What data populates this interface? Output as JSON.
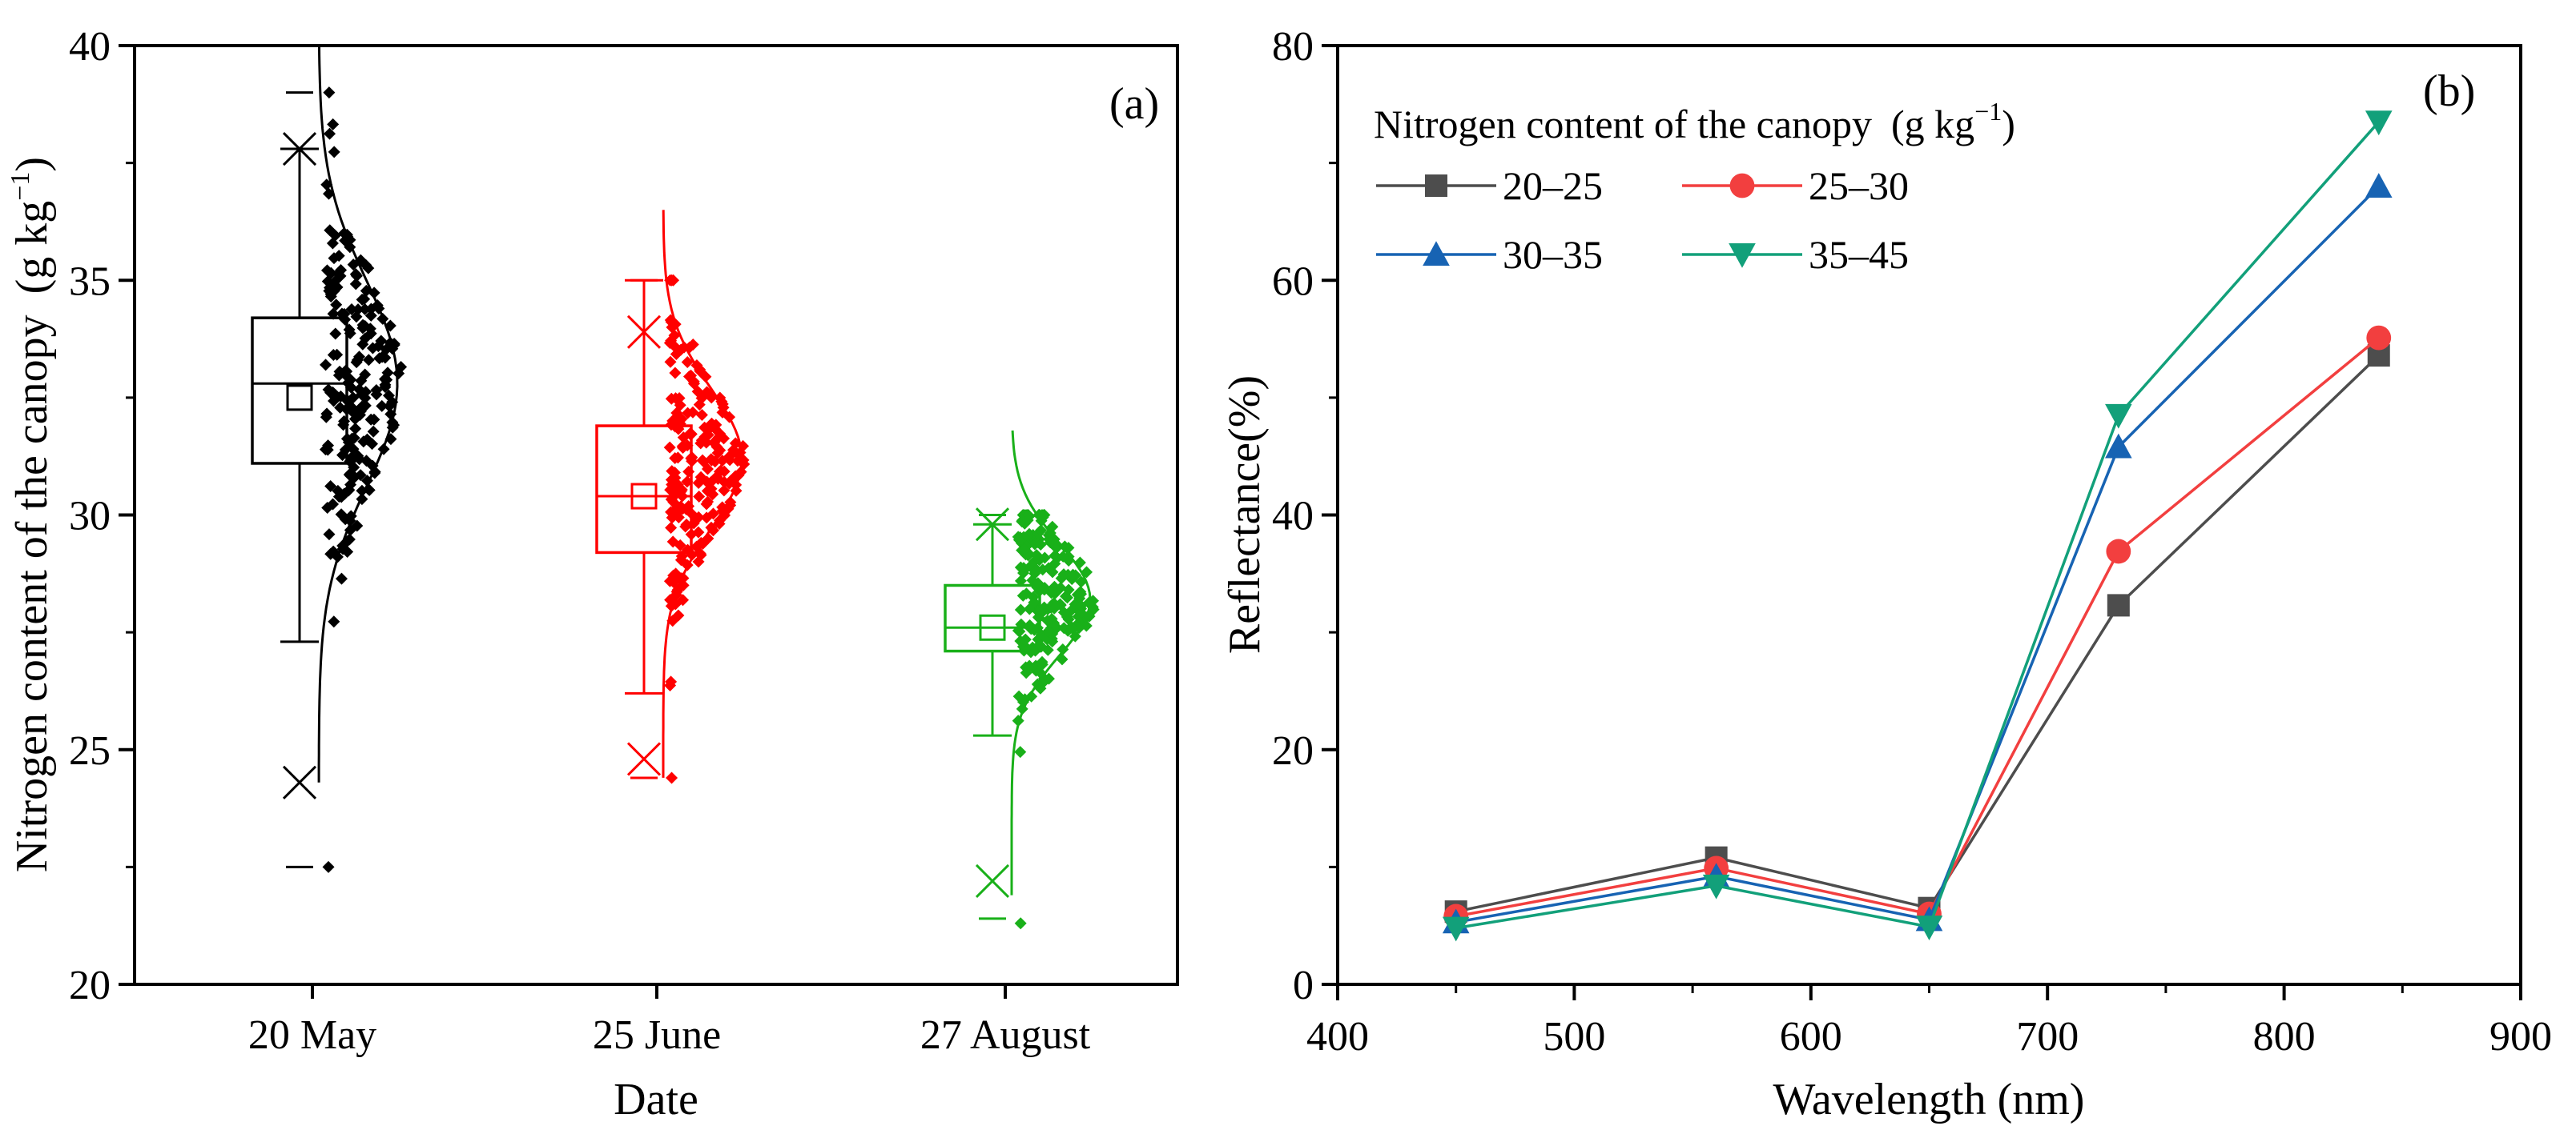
{
  "figure": {
    "panels": [
      "(a)",
      "(b)"
    ]
  },
  "chart_data": [
    {
      "type": "box",
      "panel_label": "(a)",
      "xlabel": "Date",
      "ylabel": "Nitrogen content of the canopy",
      "ylabel_unit": "(g kg",
      "ylabel_unit_exp": "−1",
      "ylabel_unit_close": ")",
      "ylim": [
        20,
        40
      ],
      "yticks": [
        20,
        25,
        30,
        35,
        40
      ],
      "categories": [
        "20 May",
        "25 June",
        "27 August"
      ],
      "colors": [
        "#000000",
        "#ff0000",
        "#19b019"
      ],
      "series": [
        {
          "name": "20 May",
          "whisker_low": 27.3,
          "q1": 31.1,
          "median": 32.8,
          "q3": 34.2,
          "whisker_high": 37.8,
          "mean": 32.5,
          "outlier_marks_x": [
            37.8,
            24.3
          ],
          "range_dashes": [
            39.0,
            22.5
          ],
          "scatter_min": 22.5,
          "scatter_max": 39.0,
          "normal_curve": {
            "mean": 32.8,
            "sd": 2.2,
            "range": [
              24.3,
              40.0
            ]
          }
        },
        {
          "name": "25 June",
          "whisker_low": 26.2,
          "q1": 29.2,
          "median": 30.4,
          "q3": 31.9,
          "whisker_high": 35.0,
          "mean": 30.4,
          "outlier_marks_x": [
            33.9,
            24.8
          ],
          "range_dashes": [
            35.0,
            24.4
          ],
          "scatter_min": 24.4,
          "scatter_max": 35.0,
          "normal_curve": {
            "mean": 31.2,
            "sd": 1.5,
            "range": [
              24.4,
              36.5
            ]
          }
        },
        {
          "name": "27 August",
          "whisker_low": 25.3,
          "q1": 27.1,
          "median": 27.6,
          "q3": 28.5,
          "whisker_high": 29.8,
          "mean": 27.6,
          "outlier_marks_x": [
            29.8,
            22.2
          ],
          "range_dashes": [
            30.0,
            21.4
          ],
          "scatter_min": 21.3,
          "scatter_max": 30.0,
          "normal_curve": {
            "mean": 28.2,
            "sd": 1.2,
            "range": [
              21.9,
              31.8
            ]
          }
        }
      ]
    },
    {
      "type": "line",
      "panel_label": "(b)",
      "xlabel": "Wavelength (nm)",
      "ylabel": "Reflectance(%)",
      "xlim": [
        400,
        900
      ],
      "ylim": [
        0,
        80
      ],
      "xticks": [
        400,
        500,
        600,
        700,
        800,
        900
      ],
      "yticks": [
        0,
        20,
        40,
        60,
        80
      ],
      "x": [
        450,
        560,
        650,
        730,
        840
      ],
      "legend_title": "Nitrogen content of the canopy",
      "legend_unit": "(g kg",
      "legend_unit_exp": "−1",
      "legend_unit_close": ")",
      "legend_position": "top-left",
      "series": [
        {
          "name": "20–25",
          "color": "#4d4d4d",
          "marker": "square",
          "values": [
            6.2,
            10.8,
            6.5,
            32.3,
            53.6
          ]
        },
        {
          "name": "25–30",
          "color": "#f23f3f",
          "marker": "circle",
          "values": [
            5.8,
            9.9,
            6.0,
            36.9,
            55.1
          ]
        },
        {
          "name": "30–35",
          "color": "#1763b3",
          "marker": "triangle-up",
          "values": [
            5.3,
            9.2,
            5.5,
            45.8,
            68.0
          ]
        },
        {
          "name": "35–45",
          "color": "#12a07a",
          "marker": "triangle-down",
          "values": [
            4.8,
            8.4,
            4.9,
            48.5,
            73.5
          ]
        }
      ]
    }
  ]
}
